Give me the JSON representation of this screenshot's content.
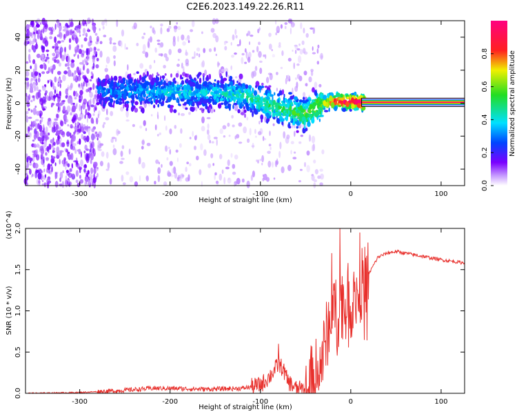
{
  "title": "C2E6.2023.149.22.26.R11",
  "colors": {
    "background": "#ffffff",
    "axis": "#000000",
    "snr_line": "#e8302c",
    "spectrogram_low": "#d9b8ff",
    "spectrogram_high": "#ff0000"
  },
  "chart_data": [
    {
      "type": "heatmap",
      "name": "spectrogram",
      "xlabel": "Height of straight line (km)",
      "ylabel": "Frequency (Hz)",
      "xlim": [
        -360,
        126
      ],
      "ylim": [
        -50,
        50
      ],
      "xticks": [
        -300,
        -200,
        -100,
        0,
        100
      ],
      "yticks": [
        -40,
        -20,
        0,
        20,
        40
      ],
      "grid": false,
      "colormap": "rainbow (white → purple → blue → cyan → green → yellow → red → magenta)",
      "colorbar": {
        "label": "Normalized spectral amplitude",
        "range": [
          0.0,
          1.0
        ],
        "ticks": [
          "0.0",
          "0.2",
          "0.4",
          "0.6",
          "0.8"
        ]
      },
      "ridge": {
        "x": [
          -360,
          -300,
          -280,
          -250,
          -200,
          -150,
          -120,
          -100,
          -80,
          -60,
          -50,
          -40,
          -30,
          -20,
          -10,
          0,
          10,
          126
        ],
        "frequency_hz": [
          8,
          8,
          8,
          7,
          7,
          6,
          5,
          1,
          -3,
          -6,
          -7,
          -3,
          0,
          1,
          1,
          1,
          0.5,
          0.5
        ],
        "amplitude": [
          0.15,
          0.2,
          0.25,
          0.3,
          0.35,
          0.35,
          0.4,
          0.45,
          0.45,
          0.5,
          0.55,
          0.55,
          0.6,
          0.8,
          0.85,
          0.9,
          0.95,
          1.0
        ]
      },
      "noise_region_x": [
        -360,
        -280
      ]
    },
    {
      "type": "line",
      "name": "snr",
      "xlabel": "Height of straight line (km)",
      "ylabel": "SNR (10 * v/v)",
      "y_multiplier": "(x10^4)",
      "xlim": [
        -360,
        126
      ],
      "ylim": [
        0.0,
        2.0
      ],
      "xticks": [
        -300,
        -200,
        -100,
        0,
        100
      ],
      "yticks": [
        "0.0",
        "0.5",
        "1.0",
        "1.5",
        "2.0"
      ],
      "grid": false,
      "series": [
        {
          "x": [
            -360,
            -300,
            -260,
            -220,
            -200,
            -160,
            -120,
            -100,
            -90,
            -80,
            -75,
            -70,
            -60,
            -50,
            -40,
            -35,
            -30,
            -25,
            -20,
            -15,
            -10,
            -5,
            0,
            5,
            10,
            15,
            20,
            30,
            40,
            50,
            60,
            80,
            100,
            126
          ],
          "values": [
            0.0,
            0.01,
            0.03,
            0.06,
            0.06,
            0.05,
            0.06,
            0.1,
            0.2,
            0.35,
            0.3,
            0.15,
            0.05,
            0.05,
            0.2,
            0.3,
            0.5,
            0.8,
            1.1,
            0.9,
            1.2,
            1.0,
            1.1,
            1.15,
            1.3,
            1.35,
            1.45,
            1.65,
            1.7,
            1.72,
            1.7,
            1.66,
            1.62,
            1.58
          ],
          "peaks": [
            {
              "x": -21,
              "value": 1.7
            },
            {
              "x": -12,
              "value": 2.0
            },
            {
              "x": 10,
              "value": 1.95
            },
            {
              "x": -3,
              "value": 1.58
            },
            {
              "x": -80,
              "value": 0.6
            }
          ]
        }
      ]
    }
  ]
}
